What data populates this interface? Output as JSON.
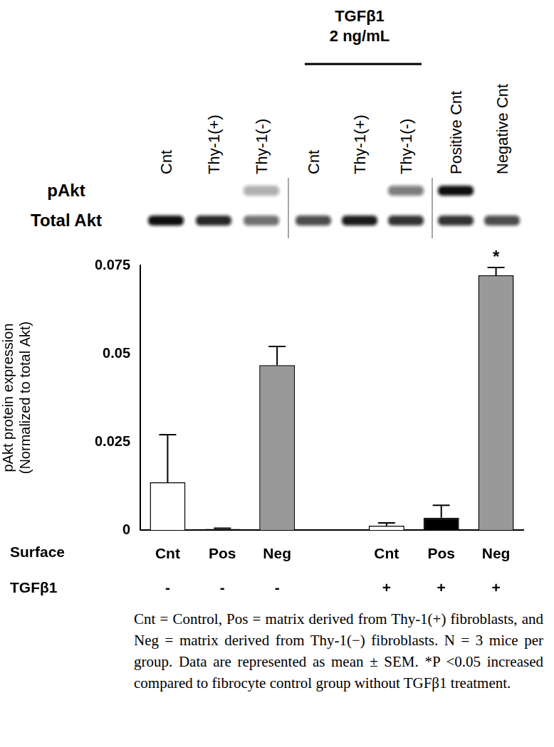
{
  "blot": {
    "lanes": [
      "Cnt",
      "Thy-1(+)",
      "Thy-1(-)",
      "Cnt",
      "Thy-1(+)",
      "Thy-1(-)",
      "Positive Cnt",
      "Negative Cnt"
    ],
    "group_label": [
      "TGFβ1",
      "2 ng/mL"
    ],
    "rows": [
      {
        "label": "pAkt",
        "intensity": [
          0,
          0,
          0.35,
          0,
          0,
          0.55,
          1,
          0
        ]
      },
      {
        "label": "Total Akt",
        "intensity": [
          1,
          0.9,
          0.6,
          0.75,
          0.95,
          0.85,
          0.85,
          0.75
        ]
      }
    ]
  },
  "chart_data": {
    "type": "bar",
    "categories": [
      "Cnt",
      "Pos",
      "Neg",
      null,
      "Cnt",
      "Pos",
      "Neg"
    ],
    "values": [
      0.0135,
      0.0003,
      0.0467,
      null,
      0.0012,
      0.0035,
      0.0722
    ],
    "errors": [
      0.0135,
      0.0002,
      0.0053,
      null,
      0.0008,
      0.0035,
      0.0022
    ],
    "colors": [
      "#ffffff",
      "#000000",
      "#999999",
      null,
      "#ffffff",
      "#000000",
      "#999999"
    ],
    "significance": [
      null,
      null,
      null,
      null,
      null,
      null,
      "*"
    ],
    "ylabel": [
      "pAkt protein expression",
      "(Normalized to total Akt)"
    ],
    "ylim": [
      0,
      0.075
    ],
    "yticks": [
      0,
      0.025,
      0.05,
      0.075
    ],
    "grid": false,
    "x_row_label": "Surface",
    "treatment": {
      "label": "TGFβ1",
      "values": [
        "-",
        "-",
        "-",
        null,
        "+",
        "+",
        "+"
      ]
    }
  },
  "caption": "Cnt = Control, Pos = matrix derived from Thy-1(+) fibroblasts, and Neg = matrix derived from Thy-1(−) fibroblasts. N = 3 mice per group. Data are represented as mean ± SEM. *P <0.05 increased compared to fibrocyte control group without TGFβ1 treatment."
}
